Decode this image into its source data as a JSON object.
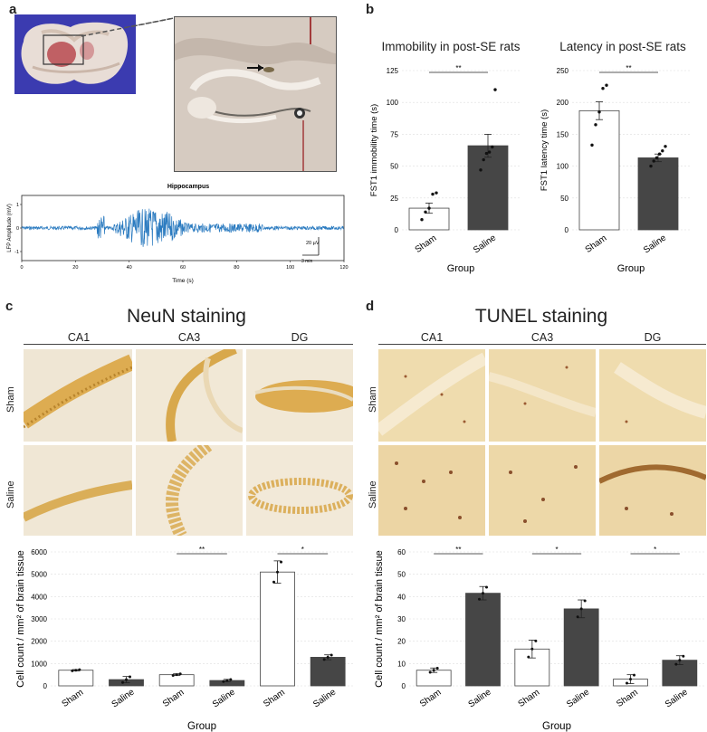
{
  "panel_labels": {
    "a": "a",
    "b": "b",
    "c": "c",
    "d": "d"
  },
  "panel_a": {
    "trace": {
      "title": "Hippocampus",
      "ylabel": "LFP Amplitude (mV)",
      "xlabel": "Time (s)",
      "xticks": [
        "0",
        "20",
        "40",
        "60",
        "80",
        "100",
        "120"
      ],
      "yticks": [
        "1",
        "0",
        "-1"
      ],
      "scale_v": "20 µV",
      "scale_t": "3 min"
    }
  },
  "panel_b": {
    "left_title": "Immobility in post-SE rats",
    "right_title": "Latency in post-SE rats",
    "left_ylabel": "FST1 immobility time (s)",
    "right_ylabel": "FST1 latency time (s)",
    "xlabel": "Group",
    "left_yticks": [
      "0",
      "25",
      "50",
      "75",
      "100",
      "125"
    ],
    "right_yticks": [
      "0",
      "50",
      "100",
      "150",
      "200",
      "250"
    ]
  },
  "panel_c": {
    "title": "NeuN staining",
    "regions": [
      "CA1",
      "CA3",
      "DG"
    ],
    "rows": [
      "Sham",
      "Saline"
    ],
    "ylabel": "Cell count / mm² of brain tissue",
    "xlabel": "Group",
    "yticks": [
      "0",
      "1000",
      "2000",
      "3000",
      "4000",
      "5000",
      "6000"
    ]
  },
  "panel_d": {
    "title": "TUNEL staining",
    "regions": [
      "CA1",
      "CA3",
      "DG"
    ],
    "rows": [
      "Sham",
      "Saline"
    ],
    "ylabel": "Cell count / mm² of brain tissue",
    "xlabel": "Group",
    "yticks": [
      "0",
      "10",
      "20",
      "30",
      "40",
      "50",
      "60"
    ]
  },
  "colors": {
    "sham": "#ffffff",
    "saline": "#464646",
    "trace": "#2b7bc0",
    "brain_bg": "#3a3aa8",
    "stain_neun": "#d8a53a",
    "stain_tunel": "#9a5a32"
  },
  "chart_data": [
    {
      "type": "bar",
      "title": "Immobility in post-SE rats",
      "xlabel": "Group",
      "ylabel": "FST1 immobility time (s)",
      "categories": [
        "Sham",
        "Saline"
      ],
      "values": [
        17,
        66
      ],
      "errors": [
        4,
        9
      ],
      "ylim": [
        0,
        125
      ],
      "points": [
        [
          8,
          14,
          17,
          28,
          29
        ],
        [
          47,
          55,
          60,
          61,
          65,
          110
        ]
      ],
      "significance": "**"
    },
    {
      "type": "bar",
      "title": "Latency in post-SE rats",
      "xlabel": "Group",
      "ylabel": "FST1 latency time (s)",
      "categories": [
        "Sham",
        "Saline"
      ],
      "values": [
        187,
        113
      ],
      "errors": [
        14,
        6
      ],
      "ylim": [
        0,
        250
      ],
      "points": [
        [
          133,
          165,
          185,
          222,
          227
        ],
        [
          100,
          108,
          113,
          119,
          124,
          131
        ]
      ],
      "significance": "**"
    },
    {
      "type": "bar",
      "title": "NeuN staining",
      "xlabel": "Group",
      "ylabel": "Cell count / mm² of brain tissue",
      "categories": [
        "Sham",
        "Saline",
        "Sham",
        "Saline",
        "Sham",
        "Saline"
      ],
      "regions": [
        "CA1",
        "CA1",
        "CA3",
        "CA3",
        "DG",
        "DG"
      ],
      "values": [
        700,
        280,
        500,
        240,
        5100,
        1280
      ],
      "errors": [
        30,
        140,
        40,
        50,
        500,
        110
      ],
      "ylim": [
        0,
        6000
      ],
      "significance": [
        "",
        "**",
        "*"
      ]
    },
    {
      "type": "bar",
      "title": "TUNEL staining",
      "xlabel": "Group",
      "ylabel": "Cell count / mm² of brain tissue",
      "categories": [
        "Sham",
        "Saline",
        "Sham",
        "Saline",
        "Sham",
        "Saline"
      ],
      "regions": [
        "CA1",
        "CA1",
        "CA3",
        "CA3",
        "DG",
        "DG"
      ],
      "values": [
        7,
        41.5,
        16.5,
        34.5,
        3,
        11.5
      ],
      "errors": [
        1,
        3,
        4,
        4,
        2,
        2
      ],
      "ylim": [
        0,
        60
      ],
      "significance": [
        "**",
        "*",
        "*"
      ]
    }
  ]
}
